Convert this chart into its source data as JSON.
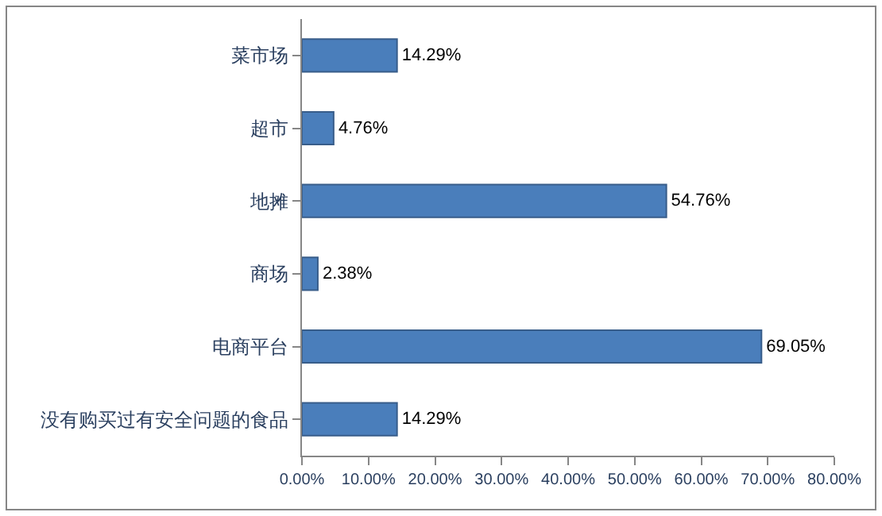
{
  "chart_data": {
    "type": "bar",
    "orientation": "horizontal",
    "categories": [
      "菜市场",
      "超市",
      "地摊",
      "商场",
      "电商平台",
      "没有购买过有安全问题的食品"
    ],
    "values": [
      14.29,
      4.76,
      54.76,
      2.38,
      69.05,
      14.29
    ],
    "value_labels": [
      "14.29%",
      "4.76%",
      "54.76%",
      "2.38%",
      "69.05%",
      "14.29%"
    ],
    "color": "#4a7ebb",
    "xlim": [
      0,
      80
    ],
    "xticks": [
      {
        "value": 0,
        "label": "0.00%"
      },
      {
        "value": 10,
        "label": "10.00%"
      },
      {
        "value": 20,
        "label": "20.00%"
      },
      {
        "value": 30,
        "label": "30.00%"
      },
      {
        "value": 40,
        "label": "40.00%"
      },
      {
        "value": 50,
        "label": "50.00%"
      },
      {
        "value": 60,
        "label": "60.00%"
      },
      {
        "value": 70,
        "label": "70.00%"
      },
      {
        "value": 80,
        "label": "80.00%"
      }
    ],
    "legend": false
  }
}
